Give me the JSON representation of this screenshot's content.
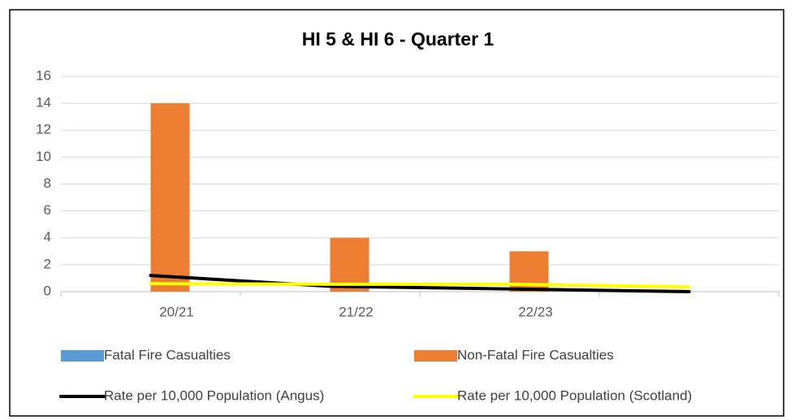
{
  "chart_data": {
    "type": "bar-line",
    "title": "HI 5 & HI 6 - Quarter 1",
    "categories": [
      "20/21",
      "21/22",
      "22/23",
      null
    ],
    "series": [
      {
        "name": "Fatal Fire Casualties",
        "type": "bar",
        "color": "#5b9bd5",
        "values": [
          0,
          0,
          0,
          null
        ]
      },
      {
        "name": "Non-Fatal Fire Casualties",
        "type": "bar",
        "color": "#ed7d31",
        "values": [
          14,
          4,
          3,
          null
        ]
      },
      {
        "name": "Rate per 10,000 Population (Angus)",
        "type": "line",
        "color": "#000000",
        "values": [
          1.2,
          0.4,
          0.2,
          0.0
        ]
      },
      {
        "name": "Rate per 10,000 Population (Scotland)",
        "type": "line",
        "color": "#ffff00",
        "values": [
          0.6,
          0.55,
          0.55,
          0.35
        ]
      }
    ],
    "ylim": [
      0,
      16
    ],
    "yticks": [
      0,
      2,
      4,
      6,
      8,
      10,
      12,
      14,
      16
    ],
    "grid": true,
    "legend": "bottom"
  }
}
